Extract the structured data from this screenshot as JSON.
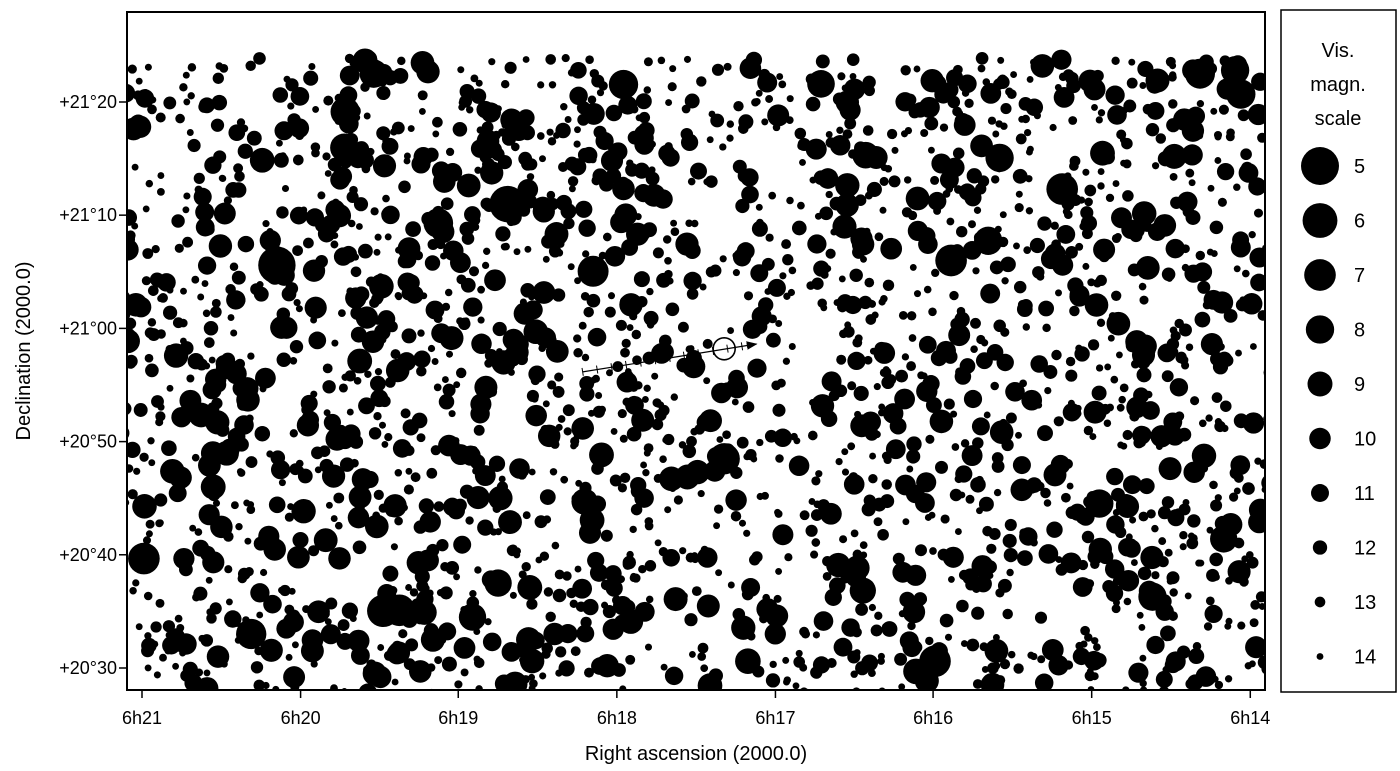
{
  "chart_data": {
    "type": "scatter",
    "xlabel": "Right ascension (2000.0)",
    "ylabel": "Declination (2000.0)",
    "x_axis": {
      "direction": "decreasing-right",
      "range_minutes_ra": [
        6.3,
        6.2335
      ],
      "ticks": [
        {
          "value": 6.35,
          "label": "6h21"
        },
        {
          "value": 6.3333,
          "label": "6h20"
        },
        {
          "value": 6.3167,
          "label": "6h19"
        },
        {
          "value": 6.3,
          "label": "6h18"
        },
        {
          "value": 6.2833,
          "label": "6h17"
        },
        {
          "value": 6.2667,
          "label": "6h16"
        },
        {
          "value": 6.25,
          "label": "6h15"
        },
        {
          "value": 6.2333,
          "label": "6h14"
        }
      ]
    },
    "y_axis": {
      "range_deg": [
        20.463,
        21.398
      ],
      "ticks": [
        {
          "value": 20.5,
          "label": "+20°30"
        },
        {
          "value": 20.6667,
          "label": "+20°40"
        },
        {
          "value": 20.8333,
          "label": "+20°50"
        },
        {
          "value": 21.0,
          "label": "+21°00"
        },
        {
          "value": 21.1667,
          "label": "+21°10"
        },
        {
          "value": 21.3333,
          "label": "+21°20"
        }
      ]
    },
    "legend": {
      "title_lines": [
        "Vis.",
        "magn.",
        "scale"
      ],
      "placement": "right",
      "entries": [
        {
          "mag": 5,
          "label": "5"
        },
        {
          "mag": 6,
          "label": "6"
        },
        {
          "mag": 7,
          "label": "7"
        },
        {
          "mag": 8,
          "label": "8"
        },
        {
          "mag": 9,
          "label": "9"
        },
        {
          "mag": 10,
          "label": "10"
        },
        {
          "mag": 11,
          "label": "11"
        },
        {
          "mag": 12,
          "label": "12"
        },
        {
          "mag": 13,
          "label": "13"
        },
        {
          "mag": 14,
          "label": "14"
        }
      ]
    },
    "bright_stars": [
      {
        "ra_h": 6.3358,
        "dec": 21.093,
        "mag": 5.2
      },
      {
        "ra_h": 6.3115,
        "dec": 21.183,
        "mag": 5.5
      },
      {
        "ra_h": 6.3498,
        "dec": 20.661,
        "mag": 7
      },
      {
        "ra_h": 6.3385,
        "dec": 20.55,
        "mag": 7.4
      },
      {
        "ra_h": 6.3246,
        "dec": 20.584,
        "mag": 6.8
      },
      {
        "ra_h": 6.3229,
        "dec": 20.585,
        "mag": 7
      },
      {
        "ra_h": 6.3025,
        "dec": 21.084,
        "mag": 7.2
      },
      {
        "ra_h": 6.2887,
        "dec": 20.808,
        "mag": 7.1
      },
      {
        "ra_h": 6.2665,
        "dec": 20.51,
        "mag": 7
      },
      {
        "ra_h": 6.2648,
        "dec": 21.1,
        "mag": 7
      },
      {
        "ra_h": 6.2531,
        "dec": 21.205,
        "mag": 7
      },
      {
        "ra_h": 6.3188,
        "dec": 21.155,
        "mag": 7.6
      },
      {
        "ra_h": 6.2993,
        "dec": 21.359,
        "mag": 7.7
      },
      {
        "ra_h": 6.2386,
        "dec": 21.375,
        "mag": 7.5
      },
      {
        "ra_h": 6.2343,
        "dec": 21.345,
        "mag": 7.7
      },
      {
        "ra_h": 6.3286,
        "dec": 21.319,
        "mag": 7.7
      },
      {
        "ra_h": 6.2349,
        "dec": 21.38,
        "mag": 8
      },
      {
        "ra_h": 6.2436,
        "dec": 20.605,
        "mag": 8
      },
      {
        "ra_h": 6.2492,
        "dec": 20.742,
        "mag": 8
      },
      {
        "ra_h": 6.2597,
        "dec": 21.251,
        "mag": 8
      },
      {
        "ra_h": 6.2609,
        "dec": 21.129,
        "mag": 8
      },
      {
        "ra_h": 6.3287,
        "dec": 21.266,
        "mag": 8
      },
      {
        "ra_h": 6.3256,
        "dec": 21.375,
        "mag": 8
      },
      {
        "ra_h": 6.3125,
        "dec": 20.625,
        "mag": 8.3
      },
      {
        "ra_h": 6.3152,
        "dec": 20.575,
        "mag": 8.3
      },
      {
        "ra_h": 6.2361,
        "dec": 20.69,
        "mag": 8.3
      },
      {
        "ra_h": 6.2785,
        "dec": 21.36,
        "mag": 8.2
      },
      {
        "ra_h": 6.2738,
        "dec": 21.255,
        "mag": 8.5
      },
      {
        "ra_h": 6.3034,
        "dec": 20.745,
        "mag": 8.6
      },
      {
        "ra_h": 6.2741,
        "dec": 20.614,
        "mag": 8.6
      },
      {
        "ra_h": 6.2685,
        "dec": 20.495,
        "mag": 8.8
      },
      {
        "ra_h": 6.2862,
        "dec": 20.51,
        "mag": 8.8
      }
    ],
    "minor_planet": {
      "position": {
        "ra_h": 6.2887,
        "dec": 20.97
      },
      "marker": "open-circle",
      "track": [
        {
          "ra_h": 6.3036,
          "dec": 20.936
        },
        {
          "ra_h": 6.2853,
          "dec": 20.977
        }
      ],
      "track_ticks": 11
    },
    "field_star_count": 2400,
    "field_star_mag_range": [
      9,
      14
    ]
  }
}
